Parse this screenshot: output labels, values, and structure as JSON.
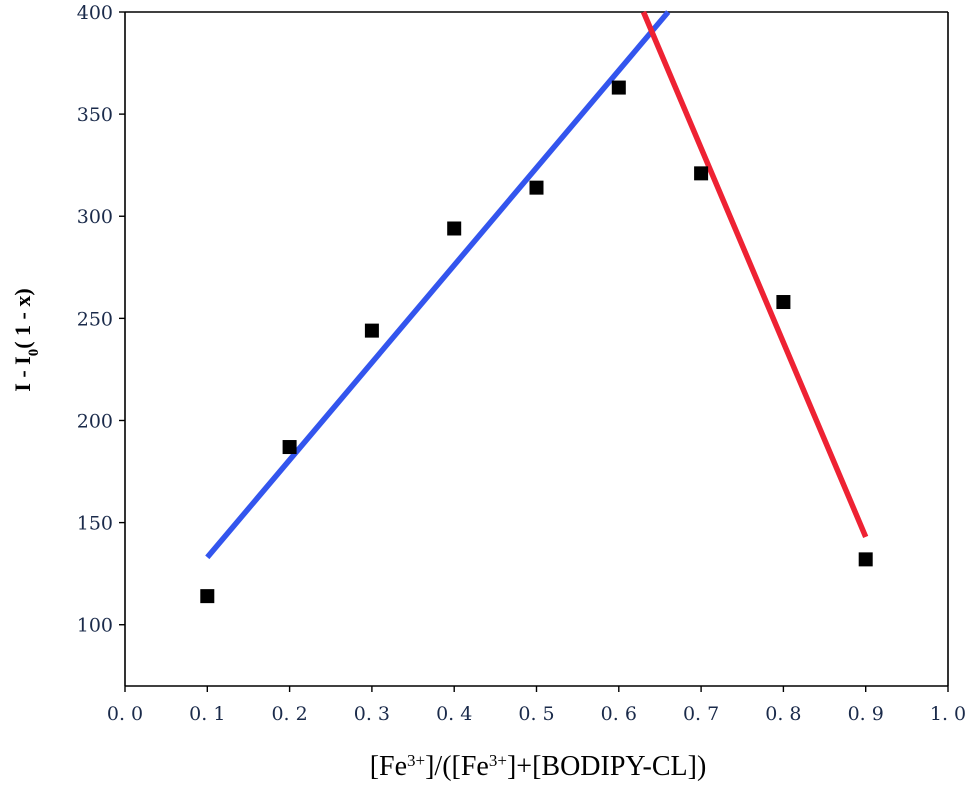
{
  "chart_data": {
    "type": "scatter",
    "title": "",
    "xlabel": {
      "p1": "[Fe",
      "sup1": "3+",
      "p2": "]/([Fe",
      "sup2": "3+",
      "p3": "]+[BODIPY-CL])"
    },
    "ylabel": {
      "p1": "I - I",
      "sub": "0",
      "p2": "( 1 - x)"
    },
    "xlim": [
      0.0,
      1.0
    ],
    "ylim": [
      70,
      400
    ],
    "xticks": [
      0.0,
      0.1,
      0.2,
      0.3,
      0.4,
      0.5,
      0.6,
      0.7,
      0.8,
      0.9,
      1.0
    ],
    "xtick_labels": [
      "0. 0",
      "0. 1",
      "0. 2",
      "0. 3",
      "0. 4",
      "0. 5",
      "0. 6",
      "0. 7",
      "0. 8",
      "0. 9",
      "1. 0"
    ],
    "yticks": [
      100,
      150,
      200,
      250,
      300,
      350,
      400
    ],
    "ytick_labels": [
      "100",
      "150",
      "200",
      "250",
      "300",
      "350",
      "400"
    ],
    "grid": false,
    "series": [
      {
        "marker": "square",
        "color": "#000000",
        "x": [
          0.1,
          0.2,
          0.3,
          0.4,
          0.5,
          0.6,
          0.7,
          0.8,
          0.9
        ],
        "y": [
          114,
          187,
          244,
          294,
          314,
          363,
          321,
          258,
          132
        ]
      }
    ],
    "fit_lines": [
      {
        "color": "#3355ee",
        "x": [
          0.1,
          0.66
        ],
        "y": [
          133,
          400
        ]
      },
      {
        "color": "#ee2233",
        "x": [
          0.63,
          0.9
        ],
        "y": [
          400,
          143
        ]
      }
    ]
  }
}
